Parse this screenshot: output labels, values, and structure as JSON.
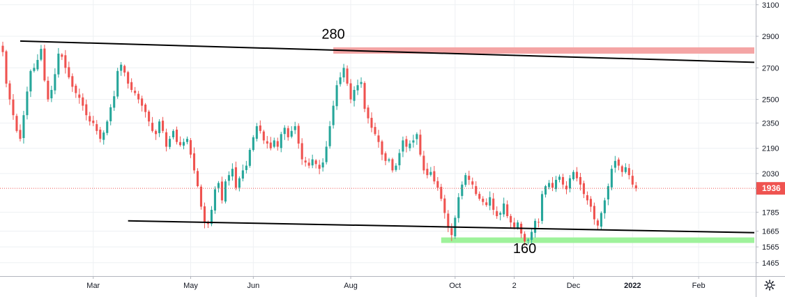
{
  "chart_data": {
    "type": "candlestick",
    "y_axis": {
      "ticks": [
        3100,
        2900,
        2700,
        2500,
        2350,
        2190,
        2030,
        1785,
        1665,
        1565,
        1465
      ],
      "range": [
        1380,
        3130
      ],
      "position": "right"
    },
    "x_axis": {
      "ticks": [
        {
          "label": "Mar",
          "index": 26
        },
        {
          "label": "May",
          "index": 54
        },
        {
          "label": "Jun",
          "index": 72
        },
        {
          "label": "Aug",
          "index": 100
        },
        {
          "label": "Oct",
          "index": 130
        },
        {
          "label": "2",
          "index": 147
        },
        {
          "label": "Dec",
          "index": 164
        },
        {
          "label": "2022",
          "index": 181,
          "bold": true
        },
        {
          "label": "Feb",
          "index": 200
        }
      ],
      "range": [
        0,
        216
      ]
    },
    "current_price": {
      "value": 1936,
      "label": "1936",
      "color": "#ef5350"
    },
    "up_color": "#26a69a",
    "down_color": "#ef5350",
    "grid": true,
    "closes": [
      2800,
      2600,
      2500,
      2400,
      2300,
      2250,
      2400,
      2550,
      2680,
      2700,
      2750,
      2820,
      2620,
      2500,
      2560,
      2660,
      2790,
      2770,
      2700,
      2640,
      2580,
      2540,
      2510,
      2460,
      2400,
      2360,
      2350,
      2300,
      2250,
      2290,
      2360,
      2450,
      2520,
      2680,
      2720,
      2670,
      2600,
      2560,
      2540,
      2500,
      2460,
      2420,
      2360,
      2300,
      2280,
      2360,
      2300,
      2200,
      2250,
      2300,
      2230,
      2210,
      2230,
      2250,
      2150,
      2050,
      1950,
      1820,
      1720,
      1710,
      1800,
      1930,
      1970,
      1860,
      1980,
      2020,
      2060,
      1940,
      2000,
      2050,
      2080,
      2180,
      2260,
      2330,
      2300,
      2240,
      2220,
      2190,
      2240,
      2200,
      2280,
      2320,
      2260,
      2300,
      2330,
      2220,
      2120,
      2100,
      2080,
      2120,
      2090,
      2060,
      2100,
      2200,
      2330,
      2460,
      2590,
      2640,
      2700,
      2600,
      2500,
      2560,
      2590,
      2610,
      2440,
      2380,
      2320,
      2280,
      2230,
      2150,
      2110,
      2120,
      2050,
      2080,
      2160,
      2240,
      2200,
      2220,
      2240,
      2280,
      2150,
      2050,
      2020,
      2040,
      1980,
      1940,
      1870,
      1780,
      1690,
      1640,
      1750,
      1880,
      1960,
      2020,
      1990,
      1960,
      1900,
      1870,
      1850,
      1830,
      1880,
      1800,
      1760,
      1780,
      1840,
      1760,
      1720,
      1690,
      1720,
      1650,
      1600,
      1610,
      1660,
      1730,
      1720,
      1900,
      1950,
      1970,
      1940,
      1990,
      2010,
      1960,
      1930,
      2000,
      2040,
      2000,
      1960,
      1900,
      1860,
      1820,
      1740,
      1700,
      1780,
      1860,
      1950,
      2060,
      2110,
      2080,
      2040,
      2070,
      2020,
      1960,
      1936
    ],
    "resistance_line": {
      "x": [
        5,
        216
      ],
      "y": [
        2870,
        2735
      ]
    },
    "support_line": {
      "x": [
        36,
        216
      ],
      "y": [
        1730,
        1655
      ]
    },
    "resistance_zone": {
      "x": [
        95,
        216
      ],
      "y": [
        2790,
        2830
      ],
      "color": "#f4a5a5"
    },
    "support_zone": {
      "x": [
        126,
        216
      ],
      "y": [
        1590,
        1625
      ],
      "color": "#9ef29b"
    },
    "annotations": [
      {
        "text": "280",
        "x": 95,
        "y": 2885
      },
      {
        "text": "160",
        "x": 150,
        "y": 1525
      }
    ]
  }
}
